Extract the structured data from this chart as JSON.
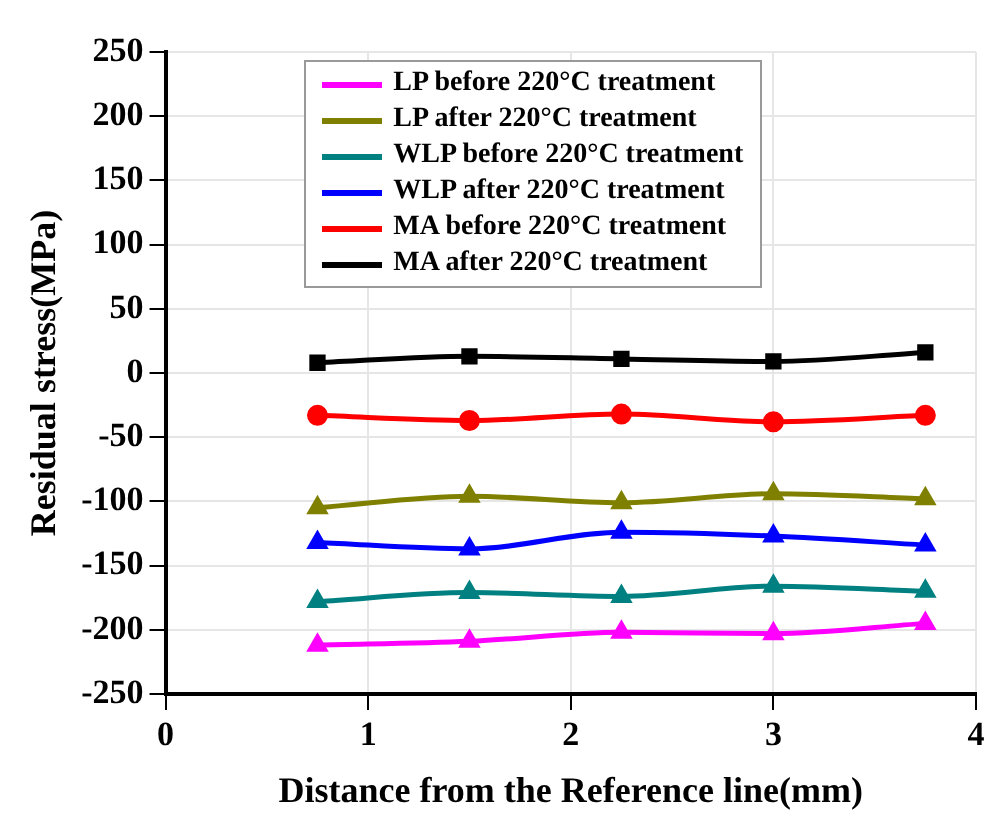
{
  "chart_data": {
    "type": "line",
    "xlabel": "Distance from the Reference line(mm)",
    "ylabel": "Residual stress(MPa)",
    "x": [
      0.75,
      1.5,
      2.25,
      3,
      3.75
    ],
    "series": [
      {
        "name": "LP before 220°C treatment",
        "color": "#ff00ff",
        "marker": "triangle",
        "values": [
          -212,
          -209,
          -202,
          -203,
          -195
        ]
      },
      {
        "name": "LP after 220°C treatment",
        "color": "#808000",
        "marker": "triangle",
        "values": [
          -105,
          -96,
          -101,
          -94,
          -98
        ]
      },
      {
        "name": "WLP before 220°C treatment",
        "color": "#008080",
        "marker": "triangle",
        "values": [
          -178,
          -171,
          -174,
          -166,
          -170
        ]
      },
      {
        "name": "WLP after 220°C treatment",
        "color": "#0000ff",
        "marker": "triangle",
        "values": [
          -132,
          -137,
          -124,
          -127,
          -134
        ]
      },
      {
        "name": "MA before 220°C treatment",
        "color": "#ff0000",
        "marker": "circle",
        "values": [
          -33,
          -37,
          -32,
          -38,
          -33
        ]
      },
      {
        "name": "MA after 220°C treatment",
        "color": "#000000",
        "marker": "square",
        "values": [
          8,
          13,
          11,
          9,
          16
        ]
      }
    ],
    "xlim": [
      0,
      4
    ],
    "xticks": [
      0,
      1,
      2,
      3,
      4
    ],
    "ylim": [
      -250,
      250
    ],
    "yticks": [
      -250,
      -200,
      -150,
      -100,
      -50,
      0,
      50,
      100,
      150,
      200,
      250
    ],
    "grid": true,
    "legend": "top"
  }
}
